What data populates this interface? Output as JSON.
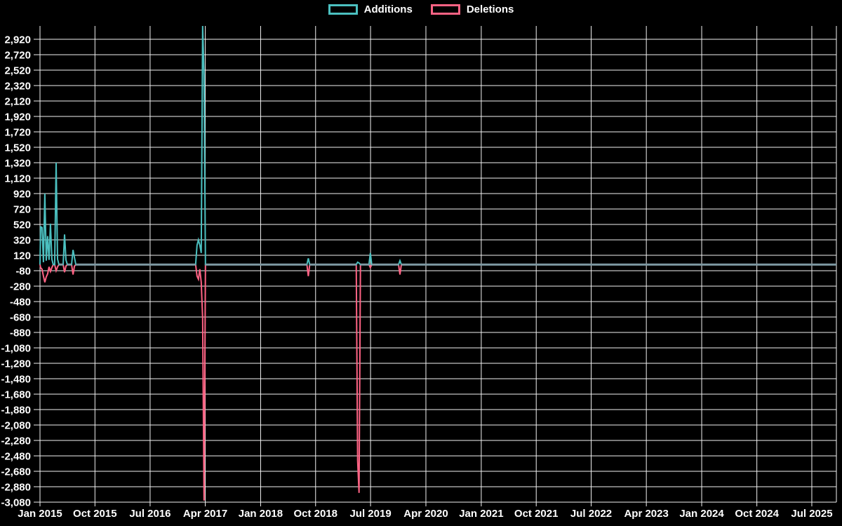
{
  "app": {
    "background_color": "#000000",
    "grid_color": "#f2f2f2",
    "text_color": "#ffffff"
  },
  "legend": {
    "items": [
      {
        "label": "Additions",
        "color": "#4bc0c0"
      },
      {
        "label": "Deletions",
        "color": "#ff6384"
      }
    ]
  },
  "chart_data": {
    "type": "line",
    "title": "",
    "xlabel": "",
    "ylabel": "",
    "legend_position": "top-center",
    "grid": true,
    "y_axis": {
      "max": 2920,
      "min": -3080,
      "tick_step": 200,
      "tick_labels": [
        "2,920",
        "2,720",
        "2,520",
        "2,320",
        "2,120",
        "1,920",
        "1,720",
        "1,520",
        "1,320",
        "1,120",
        "920",
        "720",
        "520",
        "320",
        "120",
        "-80",
        "-280",
        "-480",
        "-680",
        "-880",
        "-1,080",
        "-1,280",
        "-1,480",
        "-1,680",
        "-1,880",
        "-2,080",
        "-2,280",
        "-2,480",
        "-2,680",
        "-2,880",
        "-3,080"
      ]
    },
    "x_ticks": [
      {
        "label": "Jan 2015",
        "date": "2015-01-01"
      },
      {
        "label": "Oct 2015",
        "date": "2015-10-01"
      },
      {
        "label": "Jul 2016",
        "date": "2016-07-01"
      },
      {
        "label": "Apr 2017",
        "date": "2017-04-01"
      },
      {
        "label": "Jan 2018",
        "date": "2018-01-01"
      },
      {
        "label": "Oct 2018",
        "date": "2018-10-01"
      },
      {
        "label": "Jul 2019",
        "date": "2019-07-01"
      },
      {
        "label": "Apr 2020",
        "date": "2020-04-01"
      },
      {
        "label": "Jan 2021",
        "date": "2021-01-01"
      },
      {
        "label": "Oct 2021",
        "date": "2021-10-01"
      },
      {
        "label": "Jul 2022",
        "date": "2022-07-01"
      },
      {
        "label": "Apr 2023",
        "date": "2023-04-01"
      },
      {
        "label": "Jan 2024",
        "date": "2024-01-01"
      },
      {
        "label": "Oct 2024",
        "date": "2024-10-01"
      },
      {
        "label": "Jul 2025",
        "date": "2025-07-01"
      }
    ],
    "series_meta": [
      {
        "name": "Additions",
        "color": "#4bc0c0",
        "field": "additions"
      },
      {
        "name": "Deletions",
        "color": "#ff6384",
        "field": "deletions"
      }
    ],
    "zero_baseline_color": "#7e99a3",
    "baseline_value": 0,
    "events": [
      {
        "date": "2015-01-04",
        "additions": 490,
        "deletions": -40
      },
      {
        "date": "2015-01-11",
        "additions": 480,
        "deletions": -60
      },
      {
        "date": "2015-01-18",
        "additions": 30,
        "deletions": -150
      },
      {
        "date": "2015-01-25",
        "additions": 920,
        "deletions": -230
      },
      {
        "date": "2015-02-01",
        "additions": 50,
        "deletions": -160
      },
      {
        "date": "2015-02-08",
        "additions": 370,
        "deletions": -120
      },
      {
        "date": "2015-02-15",
        "additions": 60,
        "deletions": -30
      },
      {
        "date": "2015-02-22",
        "additions": 530,
        "deletions": -90
      },
      {
        "date": "2015-03-01",
        "additions": 70,
        "deletions": -40
      },
      {
        "date": "2015-03-22",
        "additions": 1320,
        "deletions": -80
      },
      {
        "date": "2015-03-29",
        "additions": 70,
        "deletions": -30
      },
      {
        "date": "2015-05-03",
        "additions": 390,
        "deletions": -100
      },
      {
        "date": "2015-05-10",
        "additions": 60,
        "deletions": -20
      },
      {
        "date": "2015-06-14",
        "additions": 190,
        "deletions": -130
      },
      {
        "date": "2015-06-21",
        "additions": 90,
        "deletions": -20
      },
      {
        "date": "2017-02-19",
        "additions": 250,
        "deletions": -150
      },
      {
        "date": "2017-02-26",
        "additions": 320,
        "deletions": -190
      },
      {
        "date": "2017-03-05",
        "additions": 250,
        "deletions": -60
      },
      {
        "date": "2017-03-12",
        "additions": 150,
        "deletions": -230
      },
      {
        "date": "2017-03-19",
        "additions": 3150,
        "deletions": -700
      },
      {
        "date": "2017-03-26",
        "additions": 2450,
        "deletions": -3060
      },
      {
        "date": "2018-08-26",
        "additions": 80,
        "deletions": -150
      },
      {
        "date": "2019-04-28",
        "additions": 30,
        "deletions": -2540
      },
      {
        "date": "2019-05-05",
        "additions": 20,
        "deletions": -2960
      },
      {
        "date": "2019-06-30",
        "additions": 150,
        "deletions": -40
      },
      {
        "date": "2019-11-24",
        "additions": 50,
        "deletions": -130
      }
    ]
  }
}
